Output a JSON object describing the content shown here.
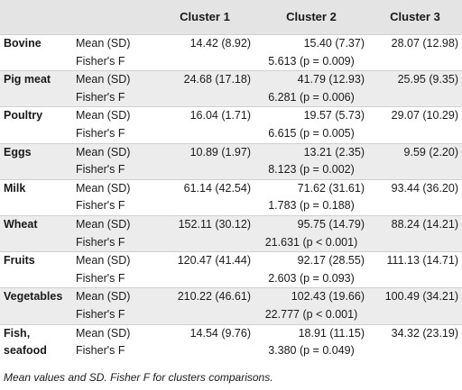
{
  "table": {
    "columns": [
      "",
      "",
      "Cluster 1",
      "Cluster 2",
      "Cluster 3"
    ],
    "rows": [
      {
        "item": "Bovine",
        "mean_label": "Mean (SD)",
        "c1": "14.42 (8.92)",
        "c2": "15.40 (7.37)",
        "c3": "28.07 (12.98)",
        "fisher_label": "Fisher's F",
        "fisher": "5.613 (p = 0.009)"
      },
      {
        "item": "Pig meat",
        "mean_label": "Mean (SD)",
        "c1": "24.68 (17.18)",
        "c2": "41.79 (12.93)",
        "c3": "25.95 (9.35)",
        "fisher_label": "Fisher's F",
        "fisher": "6.281 (p = 0.006)"
      },
      {
        "item": "Poultry",
        "mean_label": "Mean (SD)",
        "c1": "16.04 (1.71)",
        "c2": "19.57 (5.73)",
        "c3": "29.07 (10.29)",
        "fisher_label": "Fisher's F",
        "fisher": "6.615 (p = 0.005)"
      },
      {
        "item": "Eggs",
        "mean_label": "Mean (SD)",
        "c1": "10.89 (1.97)",
        "c2": "13.21 (2.35)",
        "c3": "9.59 (2.20)",
        "fisher_label": "Fisher's F",
        "fisher": "8.123 (p = 0.002)"
      },
      {
        "item": "Milk",
        "mean_label": "Mean (SD)",
        "c1": "61.14 (42.54)",
        "c2": "71.62 (31.61)",
        "c3": "93.44 (36.20)",
        "fisher_label": "Fisher's F",
        "fisher": "1.783 (p = 0.188)"
      },
      {
        "item": "Wheat",
        "mean_label": "Mean (SD)",
        "c1": "152.11 (30.12)",
        "c2": "95.75 (14.79)",
        "c3": "88.24 (14.21)",
        "fisher_label": "Fisher's F",
        "fisher": "21.631 (p < 0.001)"
      },
      {
        "item": "Fruits",
        "mean_label": "Mean (SD)",
        "c1": "120.47 (41.44)",
        "c2": "92.17 (28.55)",
        "c3": "111.13 (14.71)",
        "fisher_label": "Fisher's F",
        "fisher": "2.603 (p = 0.093)"
      },
      {
        "item": "Vegetables",
        "mean_label": "Mean (SD)",
        "c1": "210.22 (46.61)",
        "c2": "102.43 (19.66)",
        "c3": "100.49 (34.21)",
        "fisher_label": "Fisher's F",
        "fisher": "22.777 (p < 0.001)"
      },
      {
        "item": "Fish, seafood",
        "mean_label": "Mean (SD)",
        "c1": "14.54 (9.76)",
        "c2": "18.91 (11.15)",
        "c3": "34.32 (23.19)",
        "fisher_label": "Fisher's F",
        "fisher": "3.380 (p = 0.049)"
      }
    ]
  },
  "footnote": "Mean values and SD. Fisher F for clusters comparisons.",
  "colors": {
    "header_bg": "#e4e4e4",
    "band_bg": "#ececec",
    "text": "#1a1a1a"
  }
}
